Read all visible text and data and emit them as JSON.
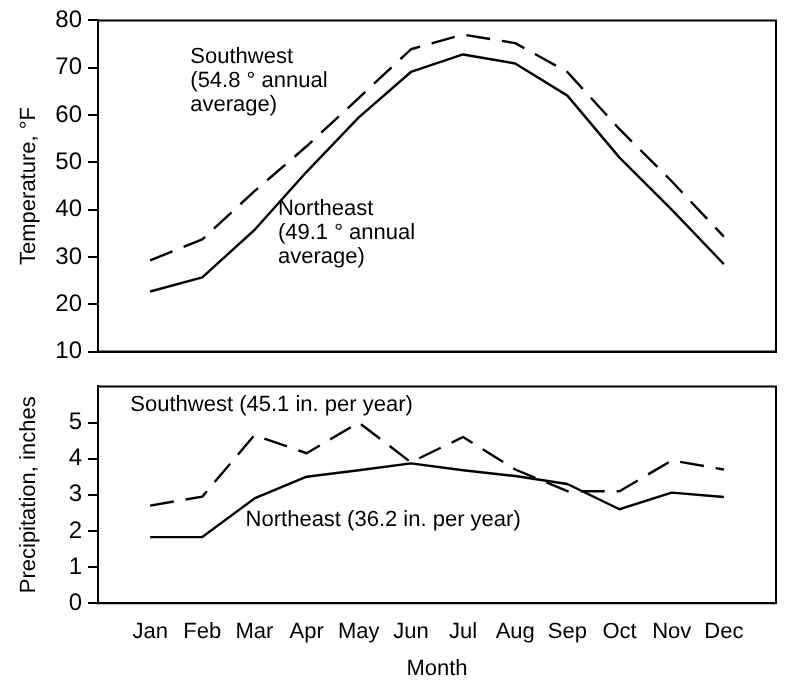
{
  "chart_data": [
    {
      "type": "line",
      "ylabel": "Temperature, °F",
      "categories": [
        null,
        null,
        null,
        null,
        null,
        null,
        null,
        null,
        null,
        null,
        null,
        null
      ],
      "ylim": [
        10,
        80
      ],
      "yticks": [
        10,
        20,
        30,
        40,
        50,
        60,
        70,
        80
      ],
      "tick_labels": "y",
      "grid": false,
      "legend": false,
      "marker": "none",
      "series": [
        {
          "name": "Southwest",
          "color": "#000000",
          "line_style": "dashed",
          "values": [
            29.3,
            33.7,
            43.9,
            53.4,
            63.6,
            73.9,
            77,
            75.2,
            69.1,
            57,
            46,
            34.3
          ]
        },
        {
          "name": "Northeast",
          "color": "#000000",
          "line_style": "solid",
          "values": [
            22.7,
            25.7,
            35.7,
            48,
            59.5,
            69.1,
            72.8,
            70.9,
            64.1,
            51,
            40,
            28.5
          ]
        }
      ],
      "annotations": [
        "(54.8 ° annual average)",
        "(49.1 ° annual average)"
      ]
    },
    {
      "type": "line",
      "xlabel": "Month",
      "ylabel": "Precipitation, inches",
      "categories": [
        "Jan",
        "Feb",
        "Mar",
        "Apr",
        "May",
        "Jun",
        "Jul",
        "Aug",
        "Sep",
        "Oct",
        "Nov",
        "Dec"
      ],
      "ylim": [
        0,
        6
      ],
      "yticks": [
        0,
        1,
        2,
        3,
        4,
        5
      ],
      "grid": false,
      "legend": false,
      "marker": "none",
      "series": [
        {
          "name": "Southwest",
          "color": "#000000",
          "line_style": "dashed",
          "values": [
            2.7,
            2.95,
            4.65,
            4.15,
            5.0,
            3.9,
            4.6,
            3.7,
            3.1,
            3.1,
            3.95,
            3.7
          ]
        },
        {
          "name": "Northeast",
          "color": "#000000",
          "line_style": "solid",
          "values": [
            1.83,
            1.83,
            2.9,
            3.5,
            3.68,
            3.87,
            3.68,
            3.52,
            3.3,
            2.6,
            3.06,
            2.94
          ]
        }
      ],
      "annotations": [
        "(45.1 in. per year)",
        "(36.2 in. per year)"
      ]
    }
  ]
}
